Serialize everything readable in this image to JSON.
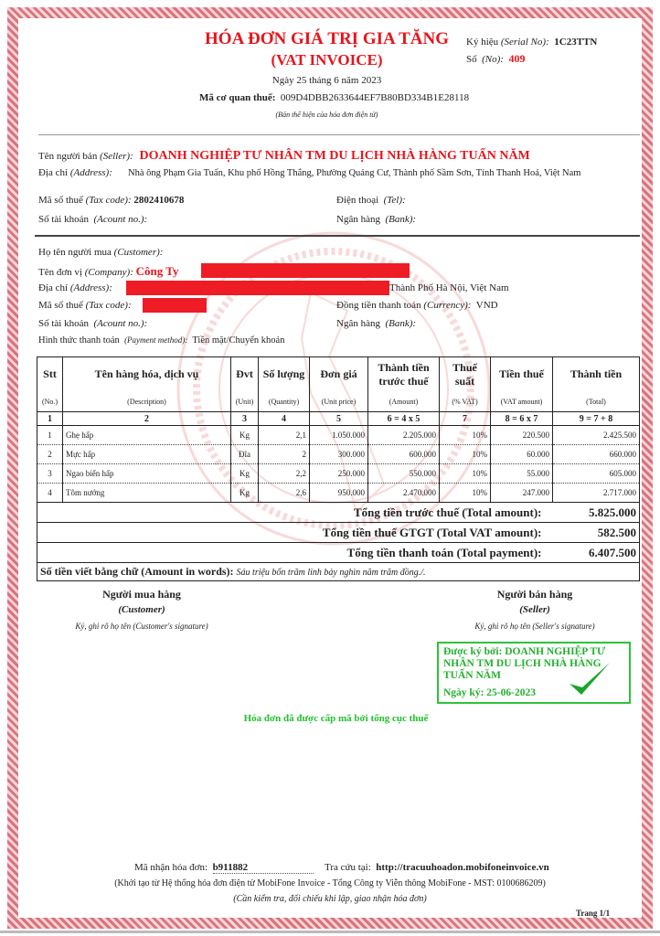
{
  "header": {
    "title": "HÓA ĐƠN GIÁ TRỊ GIA TĂNG",
    "subtitle": "(VAT INVOICE)",
    "date": "Ngày 25 tháng 6 năm 2023",
    "tax_authority_label": "Mã cơ quan thuế:",
    "tax_authority_code": "009D4DBB2633644EF7B80BD334B1E28118",
    "note": "(Bản thể hiện của hóa đơn điện tử)",
    "serial_label": "Ký hiệu",
    "serial_label_en": "(Serial No):",
    "serial": "1C23TTN",
    "no_label": "Số",
    "no_label_en": "(No):",
    "no": "409"
  },
  "seller": {
    "name_label": "Tên người bán",
    "name_label_en": "(Seller):",
    "name": "DOANH NGHIỆP TƯ NHÂN TM DU LỊCH NHÀ HÀNG TUẤN NĂM",
    "address_label": "Địa chỉ",
    "address_label_en": "(Address):",
    "address": "Nhà ông Phạm Gia Tuấn, Khu phố Hồng Thắng, Phường Quảng Cư, Thành phố Sầm Sơn, Tỉnh Thanh Hoá, Việt Nam",
    "tax_label": "Mã số thuế",
    "tax_label_en": "(Tax code):",
    "tax": "2802410678",
    "tel_label": "Điện thoại",
    "tel_label_en": "(Tel):",
    "account_label": "Số tài khoản",
    "account_label_en": "(Acount no.):",
    "bank_label": "Ngân hàng",
    "bank_label_en": "(Bank):"
  },
  "buyer": {
    "customer_label": "Họ tên người mua",
    "customer_label_en": "(Customer):",
    "company_label": "Tên đơn vị",
    "company_label_en": "(Company):",
    "company": "Công Ty",
    "address_label": "Địa chỉ",
    "address_label_en": "(Address):",
    "address": "Thành Phố Hà Nội, Việt Nam",
    "tax_label": "Mã số thuế",
    "tax_label_en": "(Tax code):",
    "currency_label": "Đồng tiền thanh toán",
    "currency_label_en": "(Currency):",
    "currency": "VND",
    "account_label": "Số tài khoản",
    "account_label_en": "(Acount no.):",
    "bank_label": "Ngân hàng",
    "bank_label_en": "(Bank):",
    "payment_label": "Hình thức thanh toán",
    "payment_label_en": "(Payment method):",
    "payment": "Tiền mặt/Chuyển khoản"
  },
  "table": {
    "headers": [
      "Stt",
      "Tên hàng hóa, dịch vụ",
      "Đvt",
      "Số lượng",
      "Đơn giá",
      "Thành tiền trước thuế",
      "Thuế suất",
      "Tiền thuế",
      "Thành tiền"
    ],
    "headers_en": [
      "(No.)",
      "(Description)",
      "(Unit)",
      "(Quantity)",
      "(Unit price)",
      "(Amount)",
      "(% VAT)",
      "(VAT amount)",
      "(Total)"
    ],
    "numbers": [
      "1",
      "2",
      "3",
      "4",
      "5",
      "6 = 4 x 5",
      "7",
      "8 = 6 x 7",
      "9 = 7 + 8"
    ],
    "rows": [
      [
        "1",
        "Ghẹ hấp",
        "Kg",
        "2,1",
        "1.050.000",
        "2.205.000",
        "10%",
        "220.500",
        "2.425.500"
      ],
      [
        "2",
        "Mực hấp",
        "Đĩa",
        "2",
        "300.000",
        "600.000",
        "10%",
        "60.000",
        "660.000"
      ],
      [
        "3",
        "Ngao biển hấp",
        "Kg",
        "2,2",
        "250.000",
        "550.000",
        "10%",
        "55.000",
        "605.000"
      ],
      [
        "4",
        "Tôm nướng",
        "Kg",
        "2,6",
        "950.000",
        "2.470.000",
        "10%",
        "247.000",
        "2.717.000"
      ]
    ],
    "total_amount_label": "Tổng tiền trước thuế (Total amount):",
    "total_amount": "5.825.000",
    "total_vat_label": "Tổng tiền thuế GTGT (Total VAT amount):",
    "total_vat": "582.500",
    "total_payment_label": "Tổng tiền thanh toán (Total payment):",
    "total_payment": "6.407.500",
    "words_label": "Số tiền viết bằng chữ (Amount in words):",
    "words": "Sáu triệu bốn trăm linh bảy nghìn năm trăm đồng./."
  },
  "signatures": {
    "buyer_title": "Người mua hàng",
    "buyer_en": "(Customer)",
    "buyer_note": "Ký, ghi rõ họ tên (Customer's signature)",
    "seller_title": "Người bán hàng",
    "seller_en": "(Seller)",
    "seller_note": "Ký, ghi rõ họ tên (Seller's signature)",
    "signed_by": "Được ký bởi: DOANH NGHIỆP TƯ NHÂN TM DU LỊCH NHÀ HÀNG TUẤN NĂM",
    "signed_date": "Ngày ký: 25-06-2023",
    "issued_note": "Hóa đơn đã được cấp mã bởi tổng cục thuế"
  },
  "footer": {
    "code_label": "Mã nhận hóa đơn:",
    "code": "b911882",
    "lookup_label": "Tra cứu tại:",
    "lookup_url": "http://tracuuhoadon.mobifoneinvoice.vn",
    "provider": "(Khởi tạo từ Hệ thống hóa đơn điện tử MobiFone Invoice - Tổng Công ty Viễn thông MobiFone - MST: 0100686209)",
    "check_note": "(Cần kiểm tra, đối chiếu khi lập, giao nhận hóa đơn)",
    "page": "Trang 1/1"
  },
  "colors": {
    "title": "#e8141c",
    "signature": "#22b12e",
    "frame": "#d9737c"
  }
}
